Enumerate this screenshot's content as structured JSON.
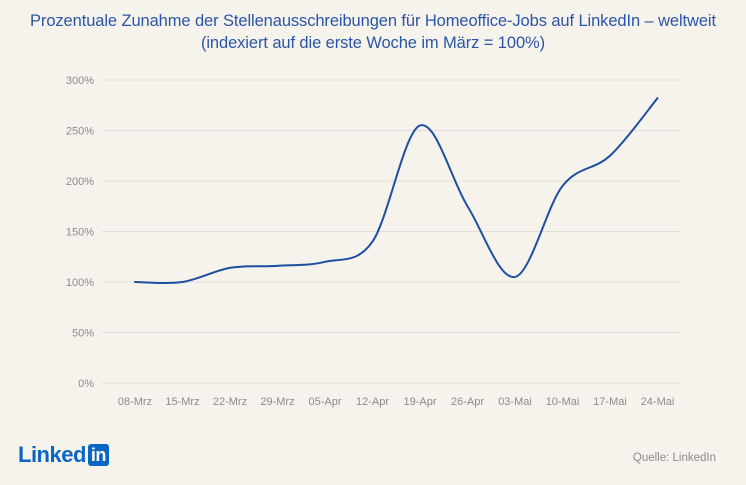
{
  "title_line1": "Prozentuale Zunahme der Stellenausschreibungen für Homeoffice-Jobs auf LinkedIn – weltweit",
  "title_line2": "(indexiert auf die erste Woche im März = 100%)",
  "logo": {
    "word": "Linked",
    "badge": "in"
  },
  "source": "Quelle: LinkedIn",
  "colors": {
    "line": "#1f4fa0",
    "grid": "#e1ddd8",
    "text": "#2b56a6",
    "background": "#f6f2ec"
  },
  "chart_data": {
    "type": "line",
    "title": "Prozentuale Zunahme der Stellenausschreibungen für Homeoffice-Jobs auf LinkedIn – weltweit (indexiert auf die erste Woche im März = 100%)",
    "categories": [
      "08-Mrz",
      "15-Mrz",
      "22-Mrz",
      "29-Mrz",
      "05-Apr",
      "12-Apr",
      "19-Apr",
      "26-Apr",
      "03-Mai",
      "10-Mai",
      "17-Mai",
      "24-Mai"
    ],
    "series": [
      {
        "values": [
          100,
          100,
          114,
          116,
          120,
          140,
          255,
          175,
          105,
          195,
          225,
          282
        ]
      }
    ],
    "yticks": [
      "0%",
      "50%",
      "100%",
      "150%",
      "200%",
      "250%",
      "300%"
    ],
    "ylim": [
      0,
      300
    ],
    "grid": true
  }
}
